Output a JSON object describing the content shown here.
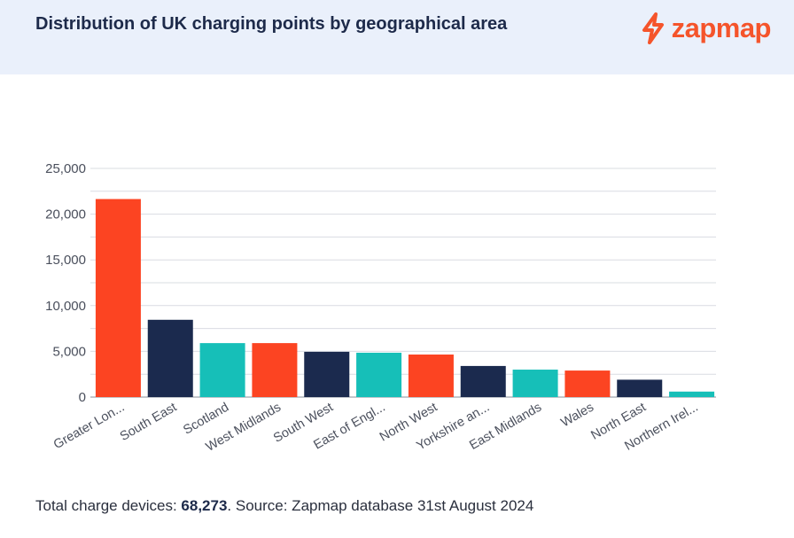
{
  "header": {
    "title": "Distribution of UK charging points by geographical area",
    "logo_text": "zapmap",
    "logo_icon": "zapmap-bolt-icon"
  },
  "footer": {
    "prefix": "Total charge devices: ",
    "total": "68,273",
    "suffix": ". Source: Zapmap database 31st August 2024"
  },
  "colors": {
    "red": "#fc4422",
    "navy": "#1b2a4e",
    "teal": "#16bfb8"
  },
  "chart_data": {
    "type": "bar",
    "title": "Distribution of UK charging points by geographical area",
    "xlabel": "",
    "ylabel": "",
    "ylim": [
      0,
      25000
    ],
    "yticks": [
      "25,000",
      "20,000",
      "15,000",
      "10,000",
      "5,000",
      "0"
    ],
    "grid": true,
    "categories": [
      "Greater Lon...",
      "South East",
      "Scotland",
      "West Midlands",
      "South West",
      "East of Engl...",
      "North West",
      "Yorkshire an...",
      "East Midlands",
      "Wales",
      "North East",
      "Northern Irel..."
    ],
    "values": [
      21650,
      8450,
      5900,
      5900,
      4950,
      4850,
      4650,
      3400,
      3000,
      2900,
      1900,
      600
    ],
    "bar_colors": [
      "#fc4422",
      "#1b2a4e",
      "#16bfb8",
      "#fc4422",
      "#1b2a4e",
      "#16bfb8",
      "#fc4422",
      "#1b2a4e",
      "#16bfb8",
      "#fc4422",
      "#1b2a4e",
      "#16bfb8"
    ]
  }
}
